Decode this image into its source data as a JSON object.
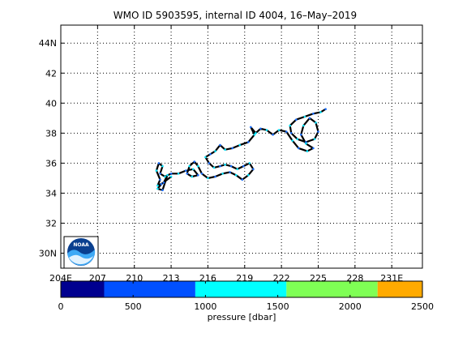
{
  "chart_data": {
    "type": "scatter",
    "title": "WMO ID 5903595, internal ID 4004, 16–May–2019",
    "xlim": [
      204,
      233.5
    ],
    "ylim": [
      29,
      45.2
    ],
    "x_ticks": [
      204,
      207,
      210,
      213,
      216,
      219,
      222,
      225,
      228,
      231
    ],
    "x_tick_labels": [
      "204E",
      "207",
      "210",
      "213",
      "216",
      "219",
      "222",
      "225",
      "228",
      "231E"
    ],
    "y_ticks": [
      30,
      32,
      34,
      36,
      38,
      40,
      42,
      44
    ],
    "y_tick_labels": [
      "30N",
      "32",
      "34",
      "36",
      "38",
      "40",
      "42",
      "44N"
    ],
    "grid": true,
    "series": [
      {
        "values": [
          [
            225.6,
            39.6
          ],
          [
            225.2,
            39.4
          ],
          [
            224.6,
            39.3
          ],
          [
            223.9,
            39.1
          ],
          [
            223.2,
            38.9
          ],
          [
            222.7,
            38.5
          ],
          [
            222.8,
            38.0
          ],
          [
            223.3,
            37.6
          ],
          [
            224.0,
            37.4
          ],
          [
            224.7,
            37.6
          ],
          [
            225.0,
            38.1
          ],
          [
            224.8,
            38.7
          ],
          [
            224.3,
            39.0
          ],
          [
            223.8,
            38.5
          ],
          [
            223.6,
            37.9
          ],
          [
            224.0,
            37.3
          ],
          [
            224.6,
            37.0
          ],
          [
            224.1,
            36.8
          ],
          [
            223.4,
            37.0
          ],
          [
            222.9,
            37.5
          ],
          [
            222.4,
            38.1
          ],
          [
            221.8,
            38.2
          ],
          [
            221.3,
            37.9
          ],
          [
            220.8,
            38.2
          ],
          [
            220.3,
            38.3
          ],
          [
            219.9,
            38.0
          ],
          [
            219.5,
            38.4
          ],
          [
            219.8,
            37.9
          ],
          [
            219.3,
            37.4
          ],
          [
            218.6,
            37.2
          ],
          [
            218.0,
            37.0
          ],
          [
            217.4,
            36.9
          ],
          [
            217.0,
            37.2
          ],
          [
            216.6,
            36.8
          ],
          [
            216.2,
            36.6
          ],
          [
            215.8,
            36.4
          ],
          [
            216.1,
            36.0
          ],
          [
            216.5,
            35.7
          ],
          [
            217.0,
            35.8
          ],
          [
            217.4,
            35.9
          ],
          [
            217.9,
            35.8
          ],
          [
            218.4,
            35.6
          ],
          [
            218.9,
            35.8
          ],
          [
            219.4,
            36.0
          ],
          [
            219.7,
            35.6
          ],
          [
            219.3,
            35.2
          ],
          [
            218.8,
            34.9
          ],
          [
            218.3,
            35.2
          ],
          [
            217.8,
            35.4
          ],
          [
            217.2,
            35.3
          ],
          [
            216.6,
            35.1
          ],
          [
            216.0,
            35.0
          ],
          [
            215.5,
            35.3
          ],
          [
            215.2,
            35.8
          ],
          [
            214.9,
            36.1
          ],
          [
            214.5,
            35.8
          ],
          [
            214.3,
            35.3
          ],
          [
            214.7,
            35.1
          ],
          [
            215.2,
            35.2
          ],
          [
            214.8,
            35.6
          ],
          [
            214.2,
            35.5
          ],
          [
            213.6,
            35.3
          ],
          [
            213.0,
            35.3
          ],
          [
            212.5,
            35.1
          ],
          [
            212.1,
            35.3
          ],
          [
            212.3,
            35.8
          ],
          [
            212.0,
            36.0
          ],
          [
            211.8,
            35.5
          ],
          [
            212.1,
            34.9
          ],
          [
            211.9,
            34.5
          ],
          [
            212.4,
            34.7
          ],
          [
            212.7,
            35.2
          ],
          [
            212.3,
            34.2
          ],
          [
            211.9,
            34.3
          ],
          [
            212.2,
            34.6
          ],
          [
            213.0,
            35.1
          ]
        ]
      }
    ],
    "colorbar": {
      "label": "pressure [dbar]",
      "range": [
        0,
        2500
      ],
      "ticks": [
        0,
        500,
        1000,
        1500,
        2000,
        2500
      ],
      "tick_labels": [
        "0",
        "500",
        "1000",
        "1500",
        "2000",
        "2500"
      ],
      "bins": [
        {
          "from": 0,
          "to": 300,
          "color": "#00008f"
        },
        {
          "from": 300,
          "to": 930,
          "color": "#0050ff"
        },
        {
          "from": 930,
          "to": 1560,
          "color": "#00ffff"
        },
        {
          "from": 1560,
          "to": 2190,
          "color": "#7fff55"
        },
        {
          "from": 2190,
          "to": 2500,
          "color": "#ffaa00"
        }
      ]
    },
    "logo_text": "NOAA",
    "path_color": "#000000",
    "marker_colors": [
      "#1a6fff",
      "#00e5ff"
    ]
  }
}
